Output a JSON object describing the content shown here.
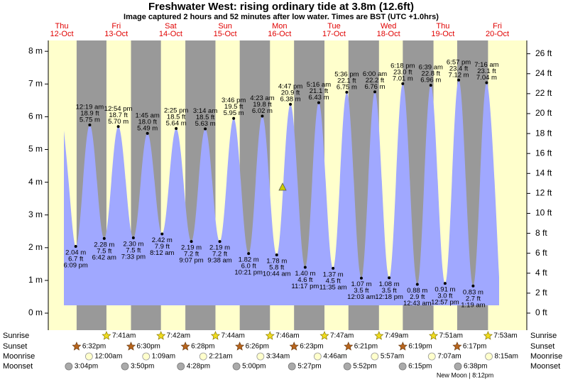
{
  "chart_data": {
    "type": "tide",
    "title": "Freshwater West: rising  ordinary tide at 3.8m (12.6ft)",
    "subtitle": "Image captured 2 hours and 52 minutes after low water. Times are BST (UTC +1.0hrs)",
    "ylim": [
      -0.52,
      8.33
    ],
    "yticks": [
      {
        "value": 0,
        "label": "0 m"
      },
      {
        "value": 1,
        "label": "1 m"
      },
      {
        "value": 2,
        "label": "2 m"
      },
      {
        "value": 3,
        "label": "3 m"
      },
      {
        "value": 4,
        "label": "4 m"
      },
      {
        "value": 5,
        "label": "5 m"
      },
      {
        "value": 6,
        "label": "6 m"
      },
      {
        "value": 7,
        "label": "7 m"
      },
      {
        "value": 8,
        "label": "8 m"
      }
    ],
    "y2lim": [
      -1.71,
      27.33
    ],
    "y2ticks": [
      {
        "value": 0,
        "label": "0 ft"
      },
      {
        "value": 2,
        "label": "2 ft"
      },
      {
        "value": 4,
        "label": "4 ft"
      },
      {
        "value": 6,
        "label": "6 ft"
      },
      {
        "value": 8,
        "label": "8 ft"
      },
      {
        "value": 10,
        "label": "10 ft"
      },
      {
        "value": 12,
        "label": "12 ft"
      },
      {
        "value": 14,
        "label": "14 ft"
      },
      {
        "value": 16,
        "label": "16 ft"
      },
      {
        "value": 18,
        "label": "18 ft"
      },
      {
        "value": 20,
        "label": "20 ft"
      },
      {
        "value": 22,
        "label": "22 ft"
      },
      {
        "value": 24,
        "label": "24 ft"
      },
      {
        "value": 26,
        "label": "26 ft"
      }
    ],
    "color": "#a0a8ff",
    "rows": {
      "sunrise": "Sunrise",
      "sunset": "Sunset",
      "moonrise": "Moonrise",
      "moonset": "Moonset"
    },
    "days": [
      {
        "weekday": "Thu",
        "date": "12-Oct",
        "sunset": "6:32pm",
        "moonset": "3:04pm",
        "tides": [
          {
            "time": "6:09 pm",
            "m": 2.04,
            "m_label": "2.04 m",
            "ft_label": "6.7 ft"
          }
        ]
      },
      {
        "weekday": "Fri",
        "date": "13-Oct",
        "sunrise": "7:41am",
        "sunset": "6:30pm",
        "moonrise": "12:00am",
        "moonset": "3:50pm",
        "tides": [
          {
            "time": "12:19 am",
            "m": 5.75,
            "m_label": "5.75 m",
            "ft_label": "18.9 ft"
          },
          {
            "time": "6:42 am",
            "m": 2.28,
            "m_label": "2.28 m",
            "ft_label": "7.5 ft"
          },
          {
            "time": "12:54 pm",
            "m": 5.7,
            "m_label": "5.70 m",
            "ft_label": "18.7 ft"
          },
          {
            "time": "7:33 pm",
            "m": 2.3,
            "m_label": "2.30 m",
            "ft_label": "7.5 ft"
          }
        ]
      },
      {
        "weekday": "Sat",
        "date": "14-Oct",
        "sunrise": "7:42am",
        "sunset": "6:28pm",
        "moonrise": "1:09am",
        "moonset": "4:28pm",
        "tides": [
          {
            "time": "1:45 am",
            "m": 5.49,
            "m_label": "5.49 m",
            "ft_label": "18.0 ft"
          },
          {
            "time": "8:12 am",
            "m": 2.42,
            "m_label": "2.42 m",
            "ft_label": "7.9 ft"
          },
          {
            "time": "2:25 pm",
            "m": 5.64,
            "m_label": "5.64 m",
            "ft_label": "18.5 ft"
          },
          {
            "time": "9:07 pm",
            "m": 2.19,
            "m_label": "2.19 m",
            "ft_label": "7.2 ft"
          }
        ]
      },
      {
        "weekday": "Sun",
        "date": "15-Oct",
        "sunrise": "7:44am",
        "sunset": "6:26pm",
        "moonrise": "2:21am",
        "moonset": "5:00pm",
        "tides": [
          {
            "time": "3:14 am",
            "m": 5.63,
            "m_label": "5.63 m",
            "ft_label": "18.5 ft"
          },
          {
            "time": "9:38 am",
            "m": 2.19,
            "m_label": "2.19 m",
            "ft_label": "7.2 ft"
          },
          {
            "time": "3:46 pm",
            "m": 5.95,
            "m_label": "5.95 m",
            "ft_label": "19.5 ft"
          },
          {
            "time": "10:21 pm",
            "m": 1.82,
            "m_label": "1.82 m",
            "ft_label": "6.0 ft"
          }
        ]
      },
      {
        "weekday": "Mon",
        "date": "16-Oct",
        "sunrise": "7:46am",
        "sunset": "6:23pm",
        "moonrise": "3:34am",
        "moonset": "5:27pm",
        "tides": [
          {
            "time": "4:23 am",
            "m": 6.02,
            "m_label": "6.02 m",
            "ft_label": "19.8 ft"
          },
          {
            "time": "10:44 am",
            "m": 1.78,
            "m_label": "1.78 m",
            "ft_label": "5.8 ft"
          },
          {
            "time": "4:47 pm",
            "m": 6.38,
            "m_label": "6.38 m",
            "ft_label": "20.9 ft"
          },
          {
            "time": "11:17 pm",
            "m": 1.4,
            "m_label": "1.40 m",
            "ft_label": "4.6 ft"
          }
        ]
      },
      {
        "weekday": "Tue",
        "date": "17-Oct",
        "sunrise": "7:47am",
        "sunset": "6:21pm",
        "moonrise": "4:46am",
        "moonset": "5:52pm",
        "tides": [
          {
            "time": "5:16 am",
            "m": 6.43,
            "m_label": "6.43 m",
            "ft_label": "21.1 ft"
          },
          {
            "time": "11:35 am",
            "m": 1.37,
            "m_label": "1.37 m",
            "ft_label": "4.5 ft"
          },
          {
            "time": "5:36 pm",
            "m": 6.75,
            "m_label": "6.75 m",
            "ft_label": "22.1 ft"
          }
        ]
      },
      {
        "weekday": "Wed",
        "date": "18-Oct",
        "sunrise": "7:49am",
        "sunset": "6:19pm",
        "moonrise": "5:57am",
        "moonset": "6:15pm",
        "tides": [
          {
            "time": "12:03 am",
            "m": 1.07,
            "m_label": "1.07 m",
            "ft_label": "3.5 ft"
          },
          {
            "time": "6:00 am",
            "m": 6.76,
            "m_label": "6.76 m",
            "ft_label": "22.2 ft"
          },
          {
            "time": "12:18 pm",
            "m": 1.08,
            "m_label": "1.08 m",
            "ft_label": "3.5 ft"
          },
          {
            "time": "6:18 pm",
            "m": 7.01,
            "m_label": "7.01 m",
            "ft_label": "23.0 ft"
          }
        ]
      },
      {
        "weekday": "Thu",
        "date": "19-Oct",
        "sunrise": "7:51am",
        "sunset": "6:17pm",
        "moonrise": "7:07am",
        "moonset": "6:38pm",
        "moon_phase": "New Moon | 8:12pm",
        "tides": [
          {
            "time": "12:43 am",
            "m": 0.88,
            "m_label": "0.88 m",
            "ft_label": "2.9 ft"
          },
          {
            "time": "6:39 am",
            "m": 6.96,
            "m_label": "6.96 m",
            "ft_label": "22.8 ft"
          },
          {
            "time": "12:57 pm",
            "m": 0.91,
            "m_label": "0.91 m",
            "ft_label": "3.0 ft"
          },
          {
            "time": "6:57 pm",
            "m": 7.12,
            "m_label": "7.12 m",
            "ft_label": "23.4 ft"
          }
        ]
      },
      {
        "weekday": "Fri",
        "date": "20-Oct",
        "sunrise": "7:53am",
        "moonrise": "8:15am",
        "tides": [
          {
            "time": "1:19 am",
            "m": 0.83,
            "m_label": "0.83 m",
            "ft_label": "2.7 ft"
          },
          {
            "time": "7:16 am",
            "m": 7.04,
            "m_label": "7.04 m",
            "ft_label": "23.1 ft"
          }
        ]
      }
    ]
  }
}
